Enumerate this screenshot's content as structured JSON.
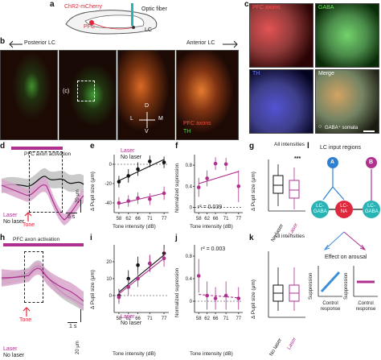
{
  "panels": {
    "a": {
      "letter": "a",
      "virus_label": "ChR2-mCherry",
      "region_label": "PFC",
      "fiber_label": "Optic fiber",
      "target_label": "LC"
    },
    "b": {
      "letter": "b",
      "left_arrow_label": "Posterior LC",
      "right_arrow_label": "Anterior LC",
      "inset_marker": "(c)",
      "axis_d": "D",
      "axis_v": "V",
      "axis_l": "L",
      "axis_m": "M",
      "legend_pfc_axons": "PFC axons",
      "legend_th": "TH"
    },
    "c": {
      "letter": "c",
      "tile_pfc": "PFC axons",
      "tile_gaba": "GABA",
      "tile_th": "TH",
      "tile_merge": "Merge",
      "somata_label": "GABA⁺ somata",
      "somata_marker": "○"
    },
    "d": {
      "letter": "d",
      "bar_label": "PFC axon activation",
      "laser_label": "Laser",
      "nolaser_label": "No laser",
      "tone_label": "Tone",
      "time_scale": "5 s",
      "size_scale": "20 μm"
    },
    "e": {
      "letter": "e",
      "laser_label": "Laser",
      "nolaser_label": "No laser",
      "xlabel": "Tone intensity (dB)",
      "ylabel": "Δ Pupil size (μm)"
    },
    "f": {
      "letter": "f",
      "ylabel": "Normalized supression",
      "xlabel": "Tone intensity (dB)",
      "stat": "r² = 0.039"
    },
    "g": {
      "letter": "g",
      "title": "All intensities",
      "sig": "***",
      "ylabel": "Δ Pupil size (μm)",
      "cat_nolaser": "No laser",
      "cat_laser": "Laser"
    },
    "h": {
      "letter": "h",
      "bar_label": "PFC axon activation",
      "laser_label": "Laser",
      "nolaser_label": "No laser",
      "tone_label": "Tone",
      "time_scale": "1 s",
      "size_scale": "20 μm"
    },
    "i": {
      "letter": "i",
      "laser_label": "Laser",
      "nolaser_label": "No laser",
      "xlabel": "Tone intensity (dB)",
      "ylabel": "Δ Pupil size (μm)"
    },
    "j": {
      "letter": "j",
      "ylabel": "Normalized supression",
      "xlabel": "Tone intensity (dB)",
      "stat": "r² = 0.003"
    },
    "k": {
      "letter": "k",
      "title": "All intensities",
      "ylabel": "Δ Pupil size (μm)",
      "cat_nolaser": "No laser",
      "cat_laser": "Laser"
    },
    "l": {
      "letter": "l",
      "title": "LC input regions",
      "node_a": "A",
      "node_b": "B",
      "node_lc_gaba_left": "LC-\nGABA",
      "node_lc_na": "LC-\nNA",
      "node_lc_gaba_right": "LC-\nGABA",
      "effect_label": "Effect on arousal",
      "ylabel_left": "Suppression",
      "ylabel_right": "Suppression",
      "xlabel_left": "Control\nresponse",
      "xlabel_right": "Control\nresponse"
    }
  },
  "colors": {
    "laser": "#b0308f",
    "nolaser": "#111111",
    "laser_band": "#d9a6cc",
    "nolaser_band": "#bdbdbd",
    "lc_na": "#e0283c",
    "lc_gaba": "#2ab3b4",
    "node_a": "#2e7fd0",
    "node_b": "#b0308f",
    "suppression_blue": "#3d8fd6",
    "suppression_magenta": "#b0308f"
  },
  "chart_data": [
    {
      "panel": "e",
      "type": "scatter",
      "x": [
        58,
        62,
        66,
        71,
        77
      ],
      "ylim": [
        -50,
        10
      ],
      "yticks": [
        -40,
        -20,
        0
      ],
      "xticks": [
        58,
        62,
        66,
        71,
        77
      ],
      "series": [
        {
          "name": "No laser",
          "values": [
            -18,
            -12,
            -5,
            3,
            2
          ],
          "err": [
            6,
            7,
            7,
            6,
            6
          ],
          "fit": [
            -17,
            5
          ]
        },
        {
          "name": "Laser",
          "values": [
            -40,
            -38,
            -35,
            -36,
            -30
          ],
          "err": [
            6,
            6,
            6,
            6,
            7
          ],
          "fit": [
            -41,
            -30
          ]
        }
      ]
    },
    {
      "panel": "f",
      "type": "scatter",
      "x": [
        58,
        62,
        66,
        71,
        77
      ],
      "ylim": [
        -0.1,
        1.0
      ],
      "yticks": [
        0,
        0.4,
        0.8
      ],
      "xticks": [
        58,
        62,
        66,
        71,
        77
      ],
      "series": [
        {
          "name": "",
          "values": [
            0.38,
            0.55,
            0.83,
            0.82,
            0.4
          ],
          "err": [
            0.18,
            0.15,
            0.12,
            0.12,
            0.3
          ],
          "fit": [
            0.45,
            0.68
          ]
        }
      ]
    },
    {
      "panel": "i",
      "type": "scatter",
      "x": [
        58,
        62,
        66,
        71,
        77
      ],
      "ylim": [
        -10,
        30
      ],
      "yticks": [
        0,
        10,
        20
      ],
      "xticks": [
        58,
        62,
        66,
        71,
        77
      ],
      "series": [
        {
          "name": "No laser",
          "values": [
            0,
            10,
            18,
            19,
            25
          ],
          "err": [
            4,
            5,
            5,
            5,
            5
          ],
          "fit": [
            2,
            24
          ]
        },
        {
          "name": "Laser",
          "values": [
            -1,
            5,
            10,
            19,
            22
          ],
          "err": [
            4,
            5,
            5,
            5,
            5
          ],
          "fit": [
            1,
            22
          ]
        }
      ]
    },
    {
      "panel": "j",
      "type": "scatter",
      "x": [
        58,
        62,
        66,
        71,
        77
      ],
      "ylim": [
        -0.2,
        1.0
      ],
      "yticks": [
        0,
        0.4,
        0.8
      ],
      "xticks": [
        58,
        62,
        66,
        71,
        77
      ],
      "series": [
        {
          "name": "",
          "values": [
            0.45,
            0.1,
            0.05,
            0.1,
            0.05
          ],
          "err": [
            0.3,
            0.25,
            0.2,
            0.25,
            0.2
          ],
          "fit": [
            0.12,
            0.06
          ]
        }
      ]
    }
  ]
}
